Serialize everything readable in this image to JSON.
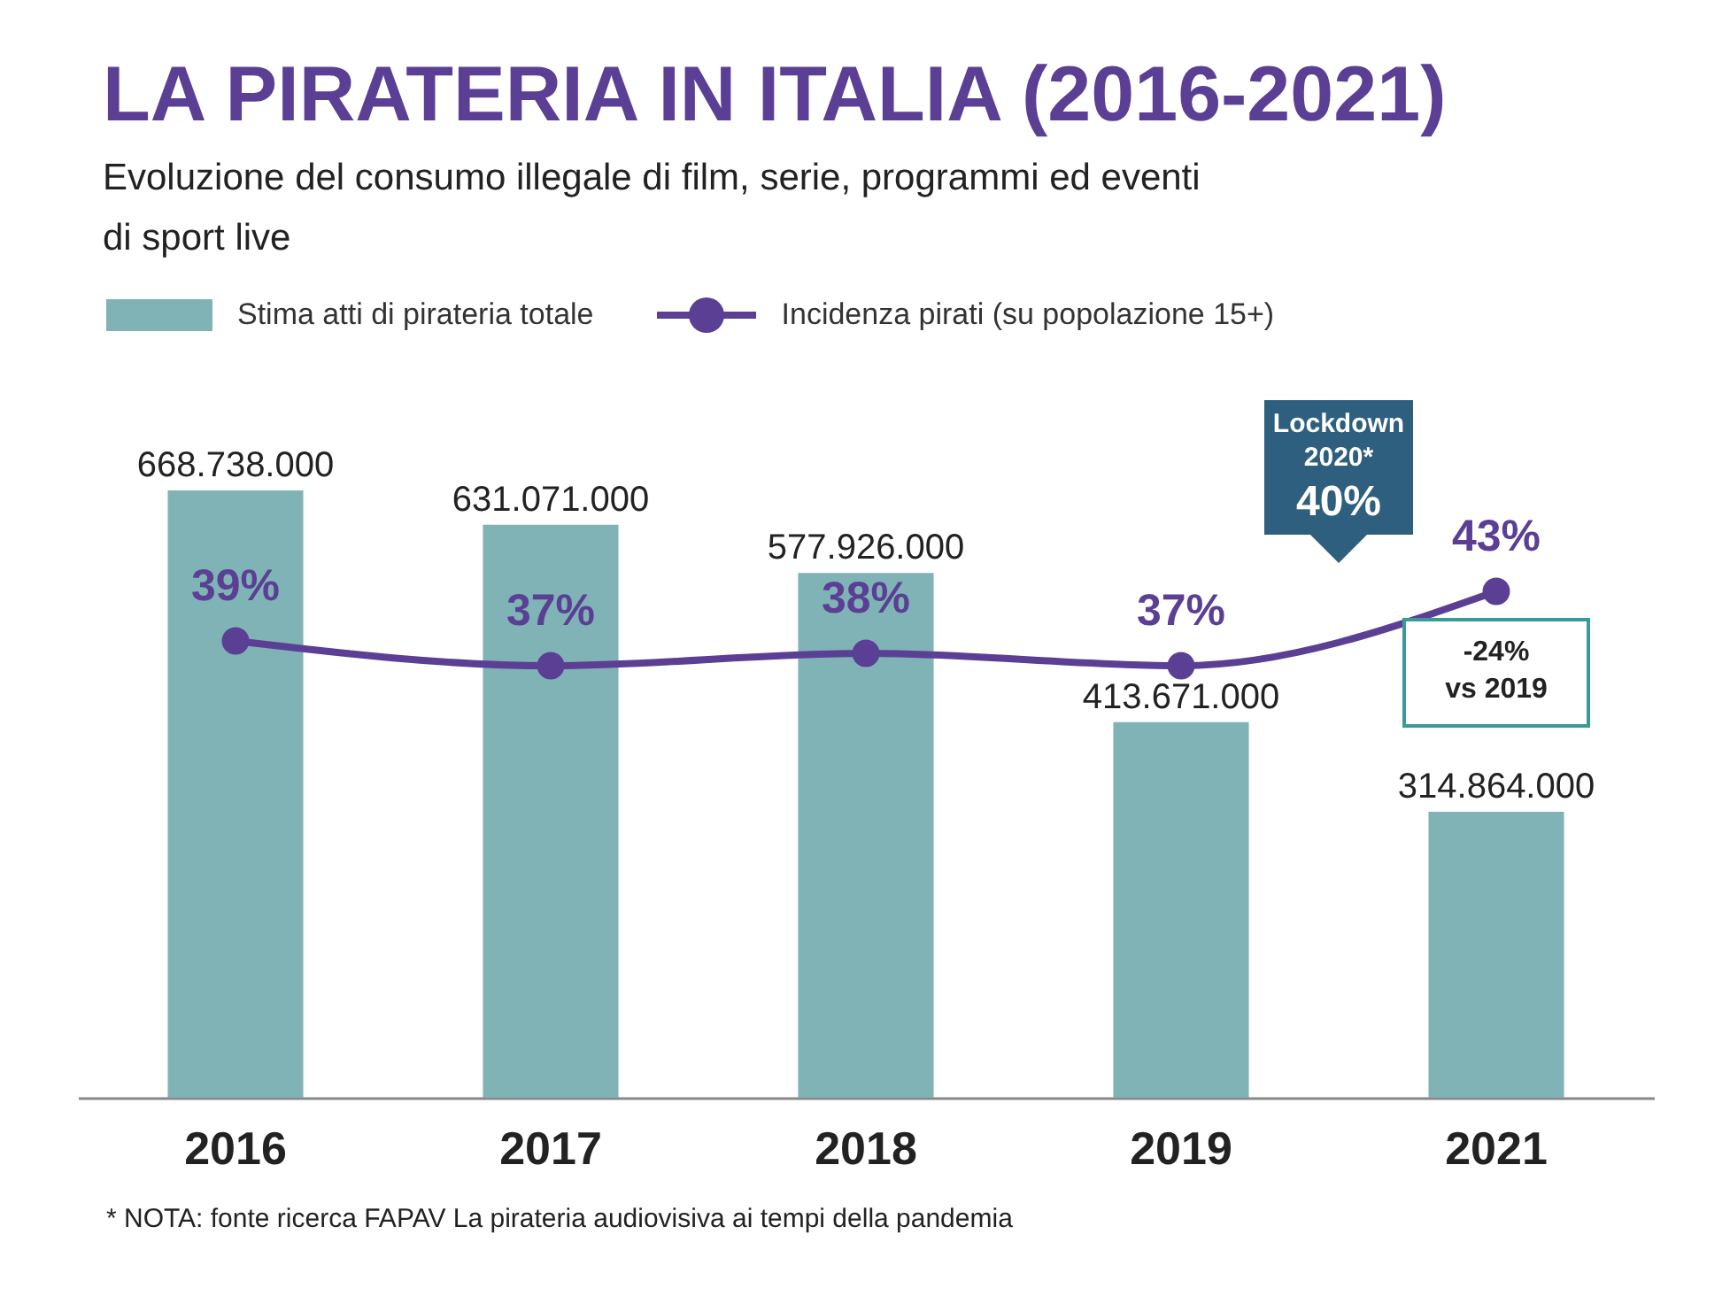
{
  "chart_data": {
    "type": "bar",
    "title": "LA PIRATERIA IN ITALIA (2016-2021)",
    "subtitle": "Evoluzione del consumo illegale di film, serie, programmi ed eventi di sport live",
    "categories": [
      "2016",
      "2017",
      "2018",
      "2019",
      "2021"
    ],
    "series": [
      {
        "name": "Stima atti di pirateria totale",
        "color": "#7fb3b5",
        "values": [
          668738000,
          631071000,
          577926000,
          413671000,
          314864000
        ],
        "value_labels": [
          "668.738.000",
          "631.071.000",
          "577.926.000",
          "413.671.000",
          "314.864.000"
        ]
      },
      {
        "name": "Incidenza pirati (su popolazione 15+)",
        "type": "line",
        "axis": "y2",
        "color": "#5b3f95",
        "values": [
          39,
          37,
          38,
          37,
          43
        ],
        "value_labels": [
          "39%",
          "37%",
          "38%",
          "37%",
          "43%"
        ]
      }
    ],
    "annotations": [
      "Lockdown\n2020*\n40%",
      "-24%\nvs 2019",
      "* NOTA: fonte ricerca FAPAV La pirateria audiovisiva ai tempi della pandemia"
    ],
    "legend": "top left",
    "marker": "circle",
    "tick_labels": "x"
  }
}
